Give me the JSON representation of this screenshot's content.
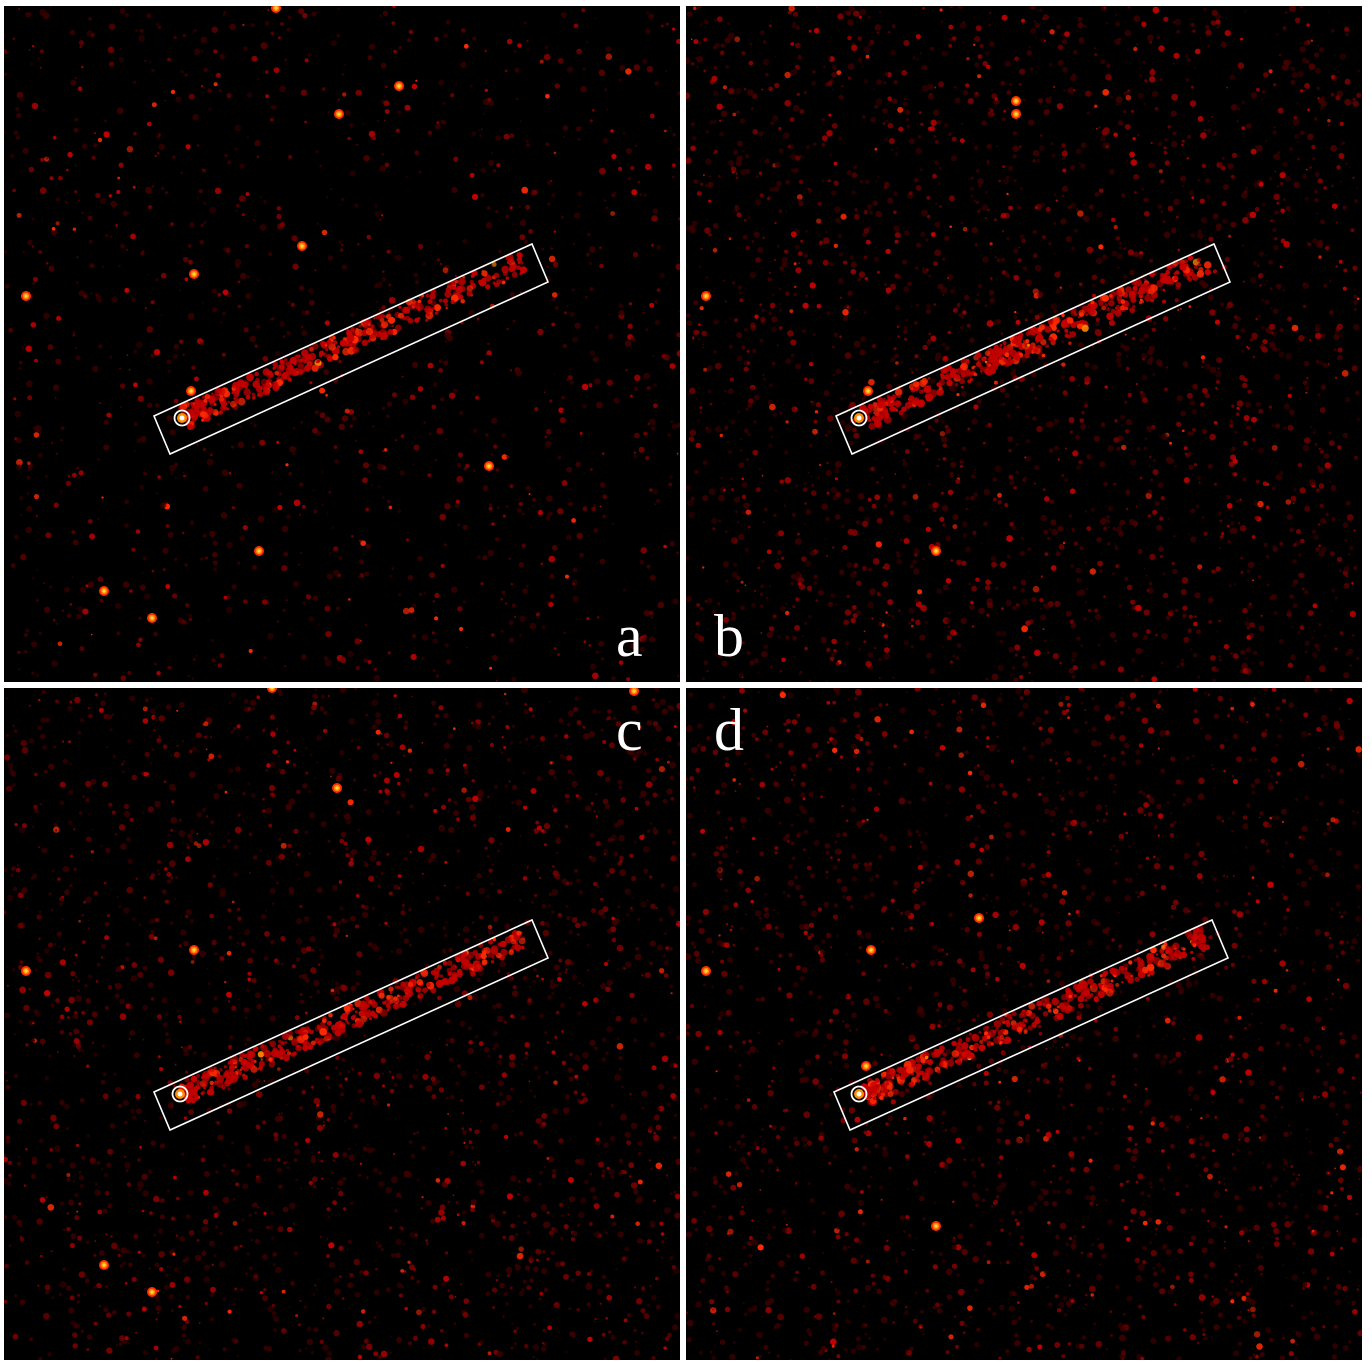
{
  "figure": {
    "background": "#000000",
    "divider_color": "#ffffff",
    "colormap": [
      "#3a0000",
      "#7a0000",
      "#c40000",
      "#ff2a00",
      "#ff8c00",
      "#ffd84a",
      "#ffffff"
    ],
    "region_marker": "rotated-rectangle",
    "source_marker": "circle",
    "panels": [
      {
        "id": "a",
        "label": "a"
      },
      {
        "id": "b",
        "label": "b"
      },
      {
        "id": "c",
        "label": "c"
      },
      {
        "id": "d",
        "label": "d"
      }
    ]
  }
}
